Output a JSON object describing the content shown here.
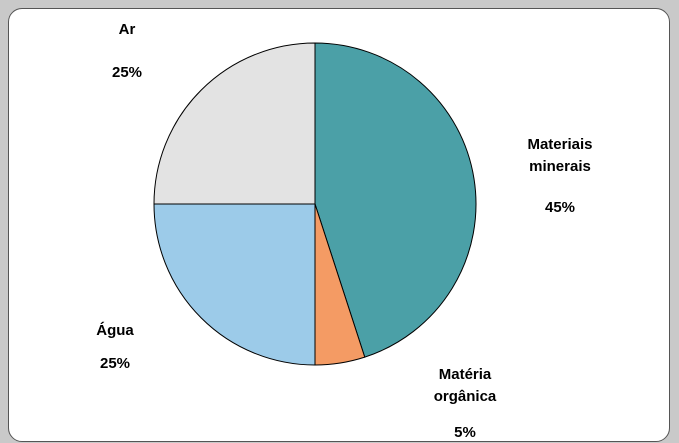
{
  "chart_data": {
    "type": "pie",
    "categories": [
      "Materiais minerais",
      "Matéria orgânica",
      "Água",
      "Ar"
    ],
    "values": [
      45,
      5,
      25,
      25
    ],
    "value_labels": [
      "45%",
      "5%",
      "25%",
      "25%"
    ],
    "colors": [
      "#4ba0a7",
      "#f49b64",
      "#9ccbe9",
      "#e3e3e3"
    ]
  }
}
